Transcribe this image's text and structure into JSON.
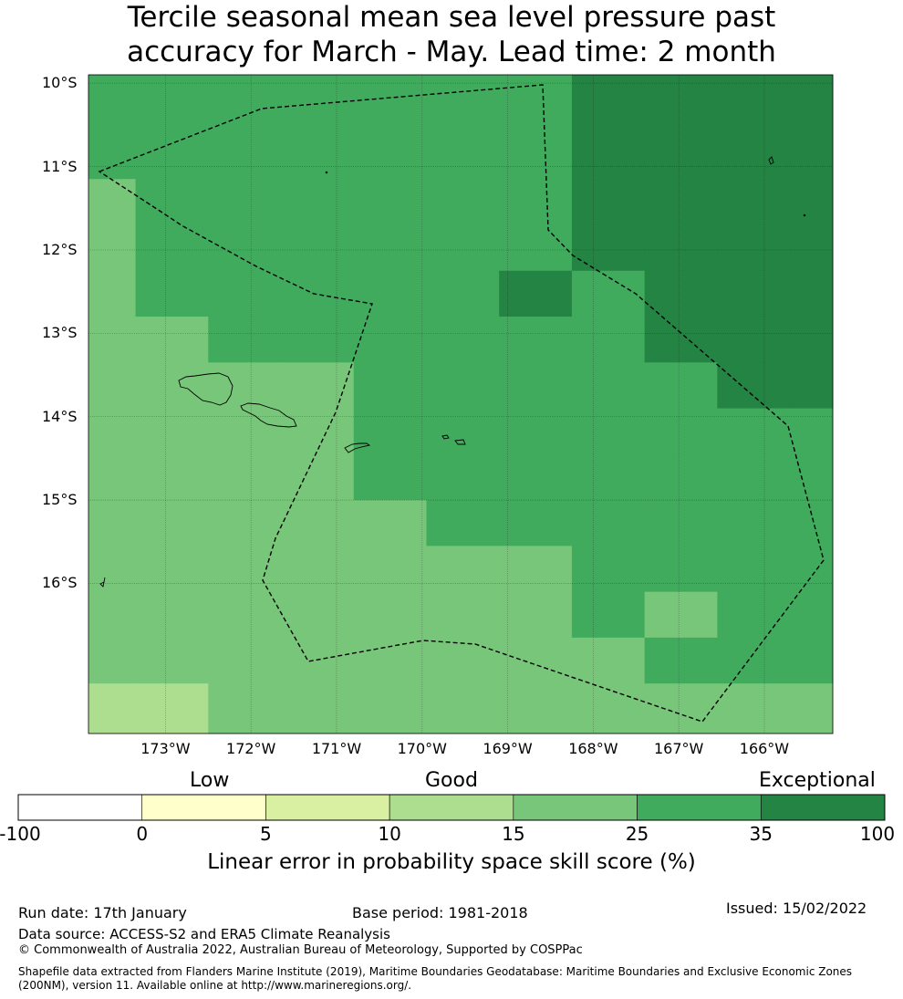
{
  "title": {
    "line1": "Tercile seasonal mean sea level pressure past",
    "line2": "accuracy for March - May. Lead time: 2 month"
  },
  "map": {
    "lat_labels": [
      "10°S",
      "11°S",
      "12°S",
      "13°S",
      "14°S",
      "15°S",
      "16°S"
    ],
    "lon_labels": [
      "173°W",
      "172°W",
      "171°W",
      "170°W",
      "169°W",
      "168°W",
      "167°W",
      "166°W"
    ],
    "lat_range": [
      -17.8,
      -9.9
    ],
    "lon_range": [
      -173.9,
      -165.2
    ],
    "skill_grid_lon_edges": [
      -173.9,
      -173.35,
      -172.5,
      -171.65,
      -170.8,
      -169.95,
      -169.1,
      -168.25,
      -167.4,
      -166.55,
      -165.7,
      -165.2
    ],
    "skill_grid_lat_edges": [
      -9.9,
      -11.15,
      -11.7,
      -12.25,
      -12.8,
      -13.35,
      -13.9,
      -14.45,
      -15.0,
      -15.55,
      -16.1,
      -16.65,
      -17.2,
      -17.8
    ],
    "skill_grid_category_rows": [
      [
        5,
        5,
        5,
        5,
        5,
        5,
        5,
        6,
        6,
        6,
        6
      ],
      [
        4,
        5,
        5,
        5,
        5,
        5,
        5,
        6,
        6,
        6,
        6
      ],
      [
        4,
        5,
        5,
        5,
        5,
        5,
        5,
        6,
        6,
        6,
        6
      ],
      [
        4,
        5,
        5,
        5,
        5,
        5,
        6,
        5,
        6,
        6,
        6
      ],
      [
        4,
        4,
        5,
        5,
        5,
        5,
        5,
        5,
        6,
        6,
        6
      ],
      [
        4,
        4,
        4,
        4,
        5,
        5,
        5,
        5,
        5,
        6,
        6
      ],
      [
        4,
        4,
        4,
        4,
        5,
        5,
        5,
        5,
        5,
        5,
        5
      ],
      [
        4,
        4,
        4,
        4,
        5,
        5,
        5,
        5,
        5,
        5,
        5
      ],
      [
        4,
        4,
        4,
        4,
        4,
        5,
        5,
        5,
        5,
        5,
        5
      ],
      [
        4,
        4,
        4,
        4,
        4,
        4,
        4,
        5,
        5,
        5,
        5
      ],
      [
        4,
        4,
        4,
        4,
        4,
        4,
        4,
        5,
        4,
        5,
        5
      ],
      [
        4,
        4,
        4,
        4,
        4,
        4,
        4,
        4,
        5,
        5,
        5
      ],
      [
        3,
        3,
        4,
        4,
        4,
        4,
        4,
        4,
        4,
        4,
        4
      ]
    ],
    "eez_boundary_style": "dashed",
    "gridlines": true
  },
  "colorbar": {
    "category_labels": [
      "Low",
      "Good",
      "Exceptional"
    ],
    "ticks": [
      "-100",
      "0",
      "5",
      "10",
      "15",
      "25",
      "35",
      "100"
    ],
    "colors": [
      "#ffffff",
      "#ffffcc",
      "#d9f0a3",
      "#addd8e",
      "#78c679",
      "#41ab5d",
      "#238443"
    ],
    "title": "Linear error in probability space skill score (%)"
  },
  "footer": {
    "run_date": "Run date: 17th January",
    "base_period": "Base period: 1981-2018",
    "issued": "Issued: 15/02/2022",
    "data_source": "Data source: ACCESS-S2 and ERA5 Climate Reanalysis",
    "copyright": "© Commonwealth of Australia 2022, Australian Bureau of Meteorology, Supported by COSPPac",
    "shapefile_line1": "Shapefile data extracted from Flanders Marine Institute (2019), Maritime Boundaries Geodatabase: Maritime Boundaries and Exclusive Economic Zones",
    "shapefile_line2": "(200NM), version 11. Available online at http://www.marineregions.org/."
  }
}
